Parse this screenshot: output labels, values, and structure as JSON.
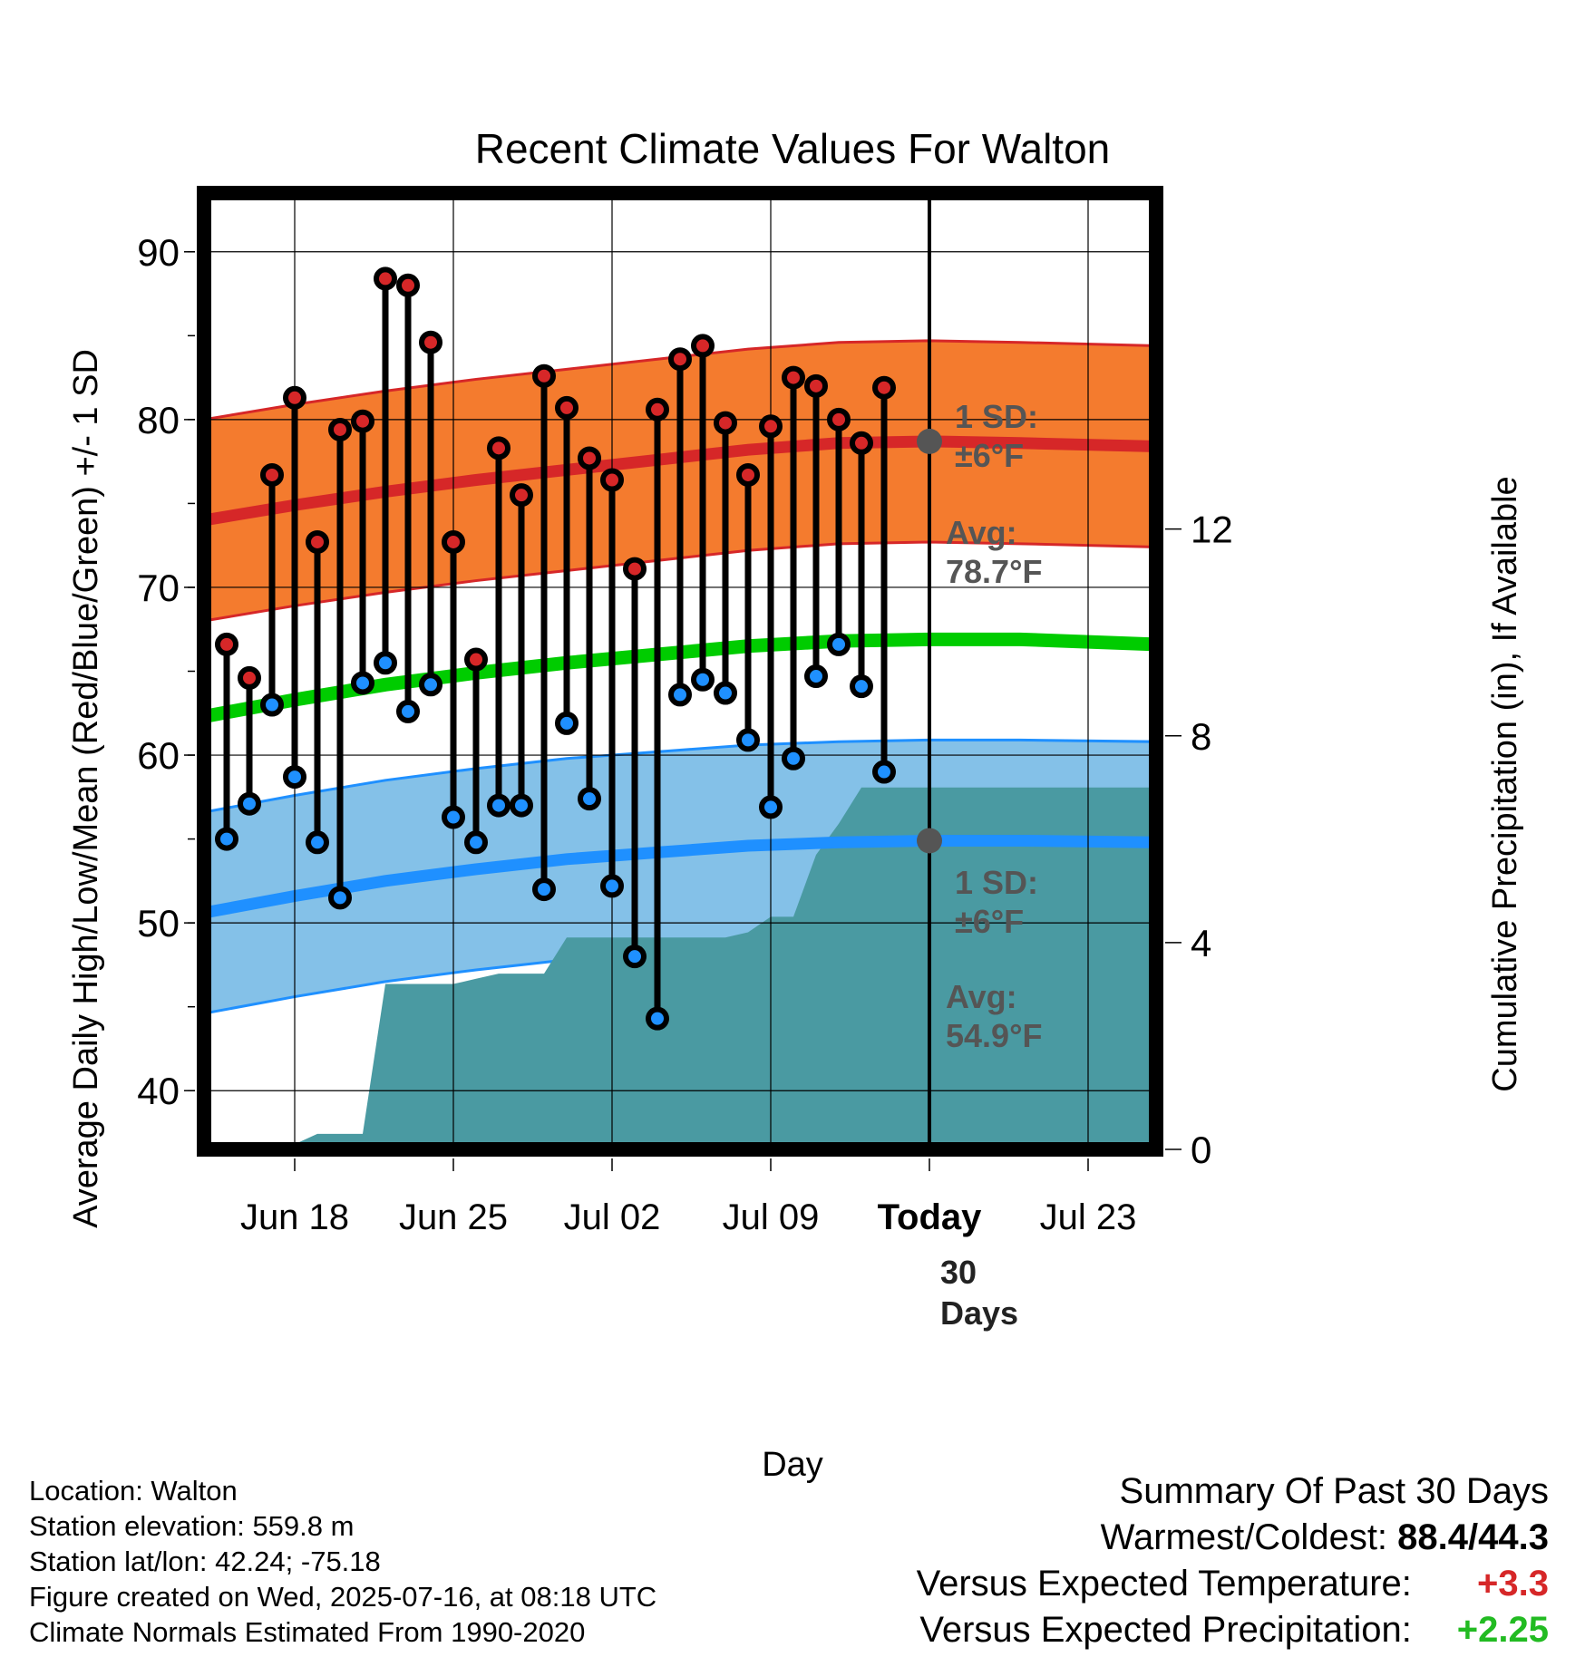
{
  "chart_data": {
    "type": "line",
    "title": "Recent Climate Values For Walton",
    "xlabel": "Day",
    "ylabel": "Average Daily High/Low/Mean (Red/Blue/Green) +/- 1 SD",
    "y2label": "Cumulative Precipitation (in), If Available",
    "ylim": [
      36.5,
      93.5
    ],
    "y2lim": [
      0,
      18.5
    ],
    "yticks": [
      40,
      50,
      60,
      70,
      80,
      90
    ],
    "y2ticks": [
      0,
      4,
      8,
      12
    ],
    "x_range": [
      "2025-06-14",
      "2025-07-26"
    ],
    "xticks": [
      {
        "date": "2025-06-18",
        "label": "Jun 18"
      },
      {
        "date": "2025-06-25",
        "label": "Jun 25"
      },
      {
        "date": "2025-07-02",
        "label": "Jul 02"
      },
      {
        "date": "2025-07-09",
        "label": "Jul 09"
      },
      {
        "date": "2025-07-16",
        "label": "Today"
      },
      {
        "date": "2025-07-23",
        "label": "Jul 23"
      }
    ],
    "today": "2025-07-16",
    "today_label": "30\nDays",
    "dates": [
      "2025-06-15",
      "2025-06-16",
      "2025-06-17",
      "2025-06-18",
      "2025-06-19",
      "2025-06-20",
      "2025-06-21",
      "2025-06-22",
      "2025-06-23",
      "2025-06-24",
      "2025-06-25",
      "2025-06-26",
      "2025-06-27",
      "2025-06-28",
      "2025-06-29",
      "2025-06-30",
      "2025-07-01",
      "2025-07-02",
      "2025-07-03",
      "2025-07-04",
      "2025-07-05",
      "2025-07-06",
      "2025-07-07",
      "2025-07-08",
      "2025-07-09",
      "2025-07-10",
      "2025-07-11",
      "2025-07-12",
      "2025-07-13",
      "2025-07-14",
      "2025-07-15"
    ],
    "series": [
      {
        "name": "High",
        "color": "#d62728",
        "values": [
          66.6,
          64.6,
          76.7,
          81.3,
          72.7,
          79.4,
          79.9,
          88.4,
          88.0,
          84.6,
          72.7,
          65.7,
          78.3,
          75.5,
          82.6,
          80.7,
          77.7,
          76.4,
          71.1,
          80.6,
          83.6,
          84.4,
          79.8,
          76.7,
          79.6,
          82.5,
          82.0,
          80.0,
          78.6,
          81.9,
          null
        ]
      },
      {
        "name": "Low",
        "color": "#1f90ff",
        "values": [
          55.0,
          57.1,
          63.0,
          58.7,
          54.8,
          51.5,
          64.3,
          65.5,
          62.6,
          64.2,
          56.3,
          54.8,
          57.0,
          57.0,
          52.0,
          61.9,
          57.4,
          52.2,
          48.0,
          44.3,
          63.6,
          64.5,
          63.7,
          60.9,
          56.9,
          59.8,
          64.7,
          66.6,
          64.1,
          59.0,
          null
        ]
      }
    ],
    "normals": {
      "dates": [
        "2025-06-14",
        "2025-06-18",
        "2025-06-22",
        "2025-06-26",
        "2025-06-30",
        "2025-07-04",
        "2025-07-08",
        "2025-07-12",
        "2025-07-16",
        "2025-07-20",
        "2025-07-26"
      ],
      "high_avg": [
        74.0,
        74.9,
        75.7,
        76.4,
        77.0,
        77.6,
        78.2,
        78.6,
        78.7,
        78.6,
        78.4
      ],
      "low_avg": [
        50.6,
        51.6,
        52.5,
        53.2,
        53.8,
        54.2,
        54.6,
        54.8,
        54.9,
        54.9,
        54.8
      ],
      "mean_avg": [
        62.3,
        63.3,
        64.2,
        64.9,
        65.5,
        66.0,
        66.5,
        66.8,
        66.9,
        66.9,
        66.6
      ],
      "sd": 6,
      "mean_color": "#00cc00",
      "high_band_color": "#f47b2e",
      "low_band_color": "#84c1e8"
    },
    "annotations": {
      "high_sd": [
        "1 SD:",
        "±6°F"
      ],
      "high_avg": [
        "Avg:",
        "78.7°F"
      ],
      "low_sd": [
        "1 SD:",
        "±6°F"
      ],
      "low_avg": [
        "Avg:",
        "54.9°F"
      ]
    },
    "precipitation": {
      "color": "#4a9aa2",
      "dates": [
        "2025-06-17",
        "2025-06-18",
        "2025-06-19",
        "2025-06-20",
        "2025-06-21",
        "2025-06-22",
        "2025-06-23",
        "2025-06-24",
        "2025-06-25",
        "2025-06-26",
        "2025-06-27",
        "2025-06-28",
        "2025-06-29",
        "2025-06-30",
        "2025-07-01",
        "2025-07-02",
        "2025-07-03",
        "2025-07-04",
        "2025-07-05",
        "2025-07-06",
        "2025-07-07",
        "2025-07-08",
        "2025-07-09",
        "2025-07-10",
        "2025-07-11",
        "2025-07-12",
        "2025-07-13",
        "2025-07-14",
        "2025-07-26"
      ],
      "values": [
        0.0,
        0.1,
        0.3,
        0.3,
        0.3,
        3.2,
        3.2,
        3.2,
        3.2,
        3.3,
        3.4,
        3.4,
        3.4,
        4.1,
        4.1,
        4.1,
        4.1,
        4.1,
        4.1,
        4.1,
        4.1,
        4.2,
        4.5,
        4.5,
        5.7,
        6.3,
        7.0,
        7.0,
        7.0
      ]
    }
  },
  "footer": {
    "location": "Location: Walton",
    "elevation": "Station elevation: 559.8 m",
    "latlon": "Station lat/lon: 42.24; -75.18",
    "created": "Figure created on Wed, 2025-07-16, at 08:18 UTC",
    "normals": "Climate Normals Estimated From 1990-2020"
  },
  "summary": {
    "title": "Summary Of Past 30 Days",
    "warm_cold_label": "Warmest/Coldest:",
    "warm_cold_value": "88.4/44.3",
    "temp_label": "Versus Expected Temperature:",
    "temp_value": "+3.3",
    "precip_label": "Versus Expected Precipitation:",
    "precip_value": "+2.25"
  }
}
